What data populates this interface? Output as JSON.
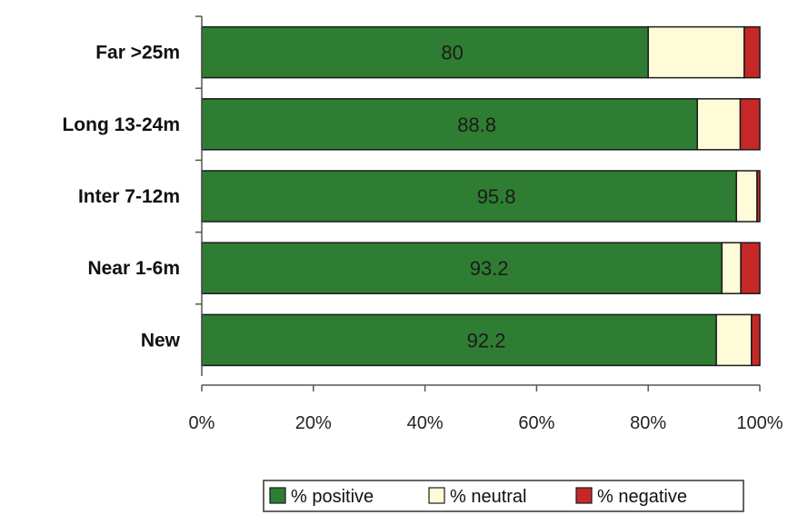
{
  "chart_data": {
    "type": "bar",
    "orientation": "horizontal",
    "stacked": "percent",
    "categories": [
      "Far >25m",
      "Long 13-24m",
      "Inter 7-12m",
      "Near 1-6m",
      "New"
    ],
    "series": [
      {
        "name": "% positive",
        "values": [
          80,
          88.8,
          95.8,
          93.2,
          92.2
        ],
        "color": "#2e7d32"
      },
      {
        "name": "% neutral",
        "values": [
          17.2,
          7.7,
          3.7,
          3.4,
          6.3
        ],
        "color": "#fdfbd8"
      },
      {
        "name": "% negative",
        "values": [
          2.8,
          3.5,
          0.5,
          3.4,
          1.5
        ],
        "color": "#c62828"
      }
    ],
    "data_labels": [
      "80",
      "88.8",
      "95.8",
      "93.2",
      "92.2"
    ],
    "x_ticks": [
      "0%",
      "20%",
      "40%",
      "60%",
      "80%",
      "100%"
    ],
    "xlim": [
      0,
      100
    ],
    "grid": false,
    "legend": "bottom",
    "title": "",
    "xlabel": "",
    "ylabel": ""
  }
}
